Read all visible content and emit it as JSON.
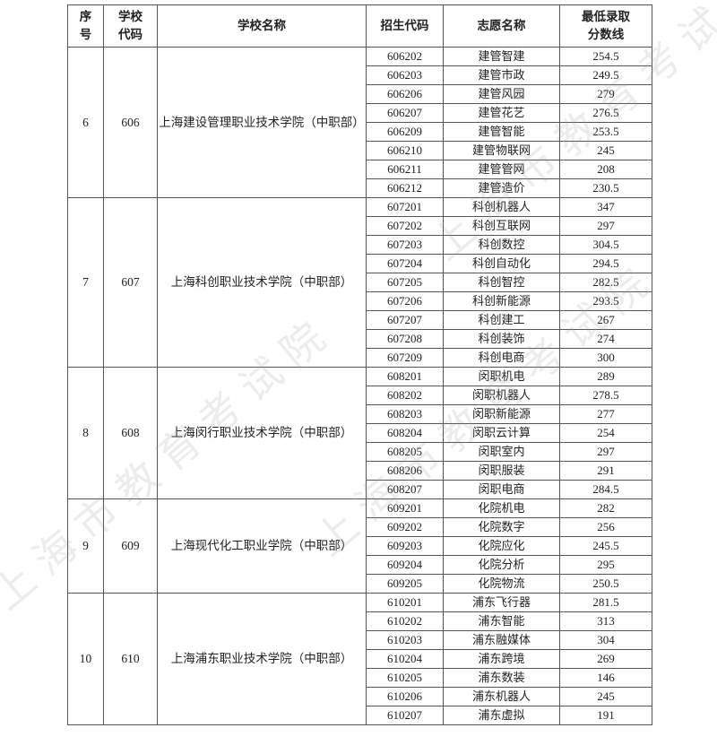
{
  "watermark": "上海市教育考试院",
  "headers": {
    "seq": "序号",
    "school_code": "学校代码",
    "school_name": "学校名称",
    "enroll_code": "招生代码",
    "program_name": "志愿名称",
    "min_score": "最低录取分数线"
  },
  "schools": [
    {
      "seq": "6",
      "code": "606",
      "name": "上海建设管理职业技术学院（中职部）",
      "programs": [
        {
          "code": "606202",
          "name": "建管智建",
          "score": "254.5"
        },
        {
          "code": "606203",
          "name": "建管市政",
          "score": "249.5"
        },
        {
          "code": "606206",
          "name": "建管风园",
          "score": "279"
        },
        {
          "code": "606207",
          "name": "建管花艺",
          "score": "276.5"
        },
        {
          "code": "606209",
          "name": "建管智能",
          "score": "253.5"
        },
        {
          "code": "606210",
          "name": "建管物联网",
          "score": "245"
        },
        {
          "code": "606211",
          "name": "建管管网",
          "score": "208"
        },
        {
          "code": "606212",
          "name": "建管造价",
          "score": "230.5"
        }
      ]
    },
    {
      "seq": "7",
      "code": "607",
      "name": "上海科创职业技术学院（中职部）",
      "programs": [
        {
          "code": "607201",
          "name": "科创机器人",
          "score": "347"
        },
        {
          "code": "607202",
          "name": "科创互联网",
          "score": "297"
        },
        {
          "code": "607203",
          "name": "科创数控",
          "score": "304.5"
        },
        {
          "code": "607204",
          "name": "科创自动化",
          "score": "294.5"
        },
        {
          "code": "607205",
          "name": "科创智控",
          "score": "282.5"
        },
        {
          "code": "607206",
          "name": "科创新能源",
          "score": "293.5"
        },
        {
          "code": "607207",
          "name": "科创建工",
          "score": "267"
        },
        {
          "code": "607208",
          "name": "科创装饰",
          "score": "274"
        },
        {
          "code": "607209",
          "name": "科创电商",
          "score": "300"
        }
      ]
    },
    {
      "seq": "8",
      "code": "608",
      "name": "上海闵行职业技术学院（中职部）",
      "programs": [
        {
          "code": "608201",
          "name": "闵职机电",
          "score": "289"
        },
        {
          "code": "608202",
          "name": "闵职机器人",
          "score": "278.5"
        },
        {
          "code": "608203",
          "name": "闵职新能源",
          "score": "277"
        },
        {
          "code": "608204",
          "name": "闵职云计算",
          "score": "254"
        },
        {
          "code": "608205",
          "name": "闵职室内",
          "score": "297"
        },
        {
          "code": "608206",
          "name": "闵职服装",
          "score": "291"
        },
        {
          "code": "608207",
          "name": "闵职电商",
          "score": "284.5"
        }
      ]
    },
    {
      "seq": "9",
      "code": "609",
      "name": "上海现代化工职业学院（中职部）",
      "programs": [
        {
          "code": "609201",
          "name": "化院机电",
          "score": "282"
        },
        {
          "code": "609202",
          "name": "化院数字",
          "score": "256"
        },
        {
          "code": "609203",
          "name": "化院应化",
          "score": "245.5"
        },
        {
          "code": "609204",
          "name": "化院分析",
          "score": "295"
        },
        {
          "code": "609205",
          "name": "化院物流",
          "score": "250.5"
        }
      ]
    },
    {
      "seq": "10",
      "code": "610",
      "name": "上海浦东职业技术学院（中职部）",
      "programs": [
        {
          "code": "610201",
          "name": "浦东飞行器",
          "score": "281.5"
        },
        {
          "code": "610202",
          "name": "浦东智能",
          "score": "313"
        },
        {
          "code": "610203",
          "name": "浦东融媒体",
          "score": "304"
        },
        {
          "code": "610204",
          "name": "浦东跨境",
          "score": "269"
        },
        {
          "code": "610205",
          "name": "浦东数装",
          "score": "146"
        },
        {
          "code": "610206",
          "name": "浦东机器人",
          "score": "245"
        },
        {
          "code": "610207",
          "name": "浦东虚拟",
          "score": "191"
        }
      ]
    }
  ]
}
